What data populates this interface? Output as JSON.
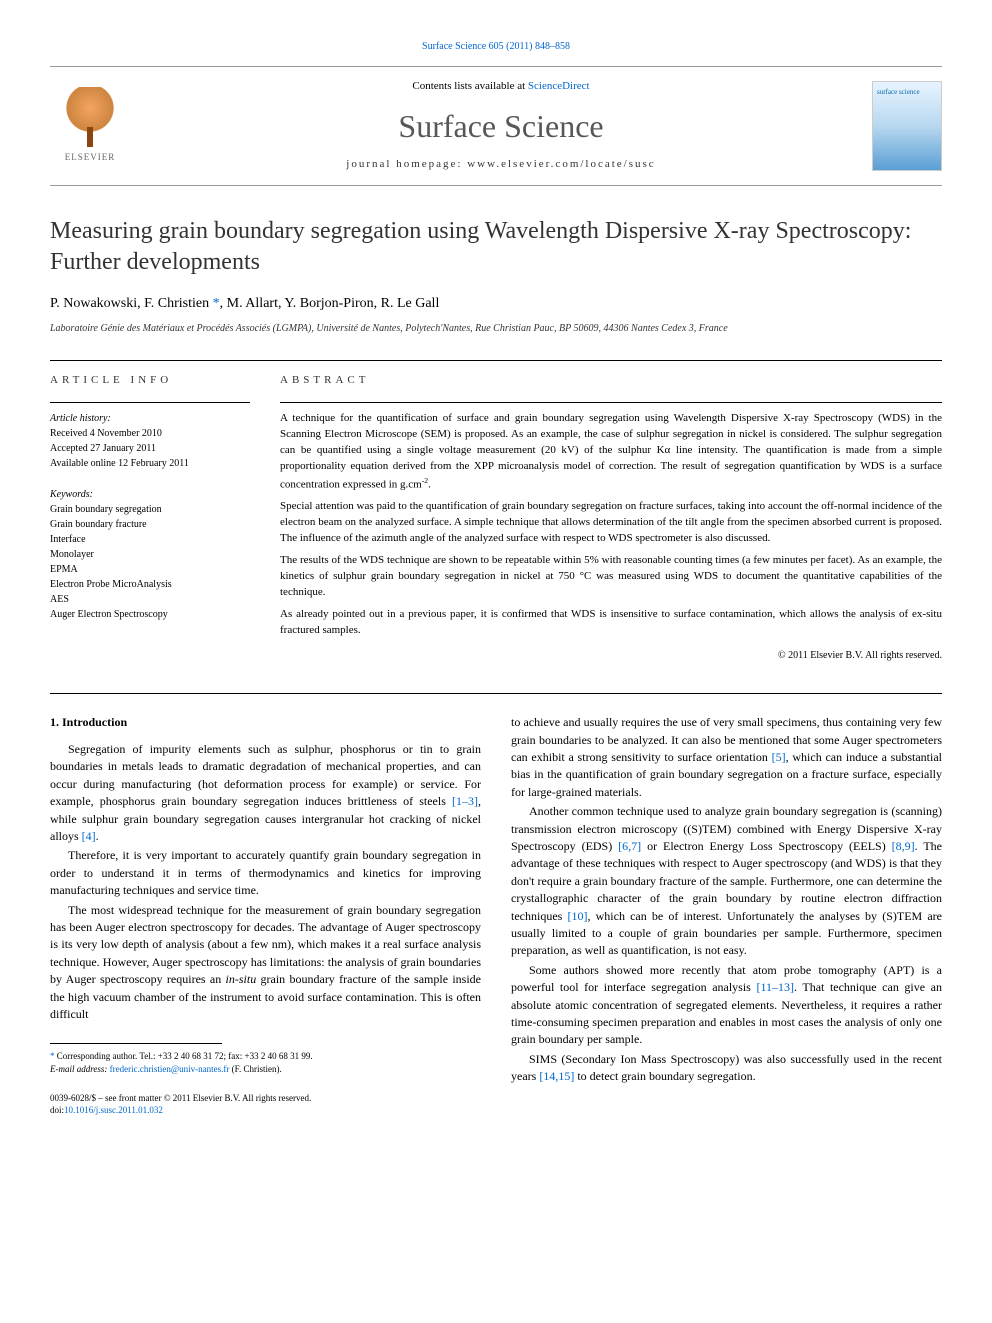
{
  "journal": {
    "citation_line": "Surface Science 605 (2011) 848–858",
    "contents_prefix": "Contents lists available at ",
    "contents_link": "ScienceDirect",
    "name": "Surface Science",
    "homepage_prefix": "journal homepage: ",
    "homepage": "www.elsevier.com/locate/susc",
    "publisher": "ELSEVIER",
    "cover_title": "surface science"
  },
  "article": {
    "title": "Measuring grain boundary segregation using Wavelength Dispersive X-ray Spectroscopy: Further developments",
    "authors_pre": "P. Nowakowski, F. Christien ",
    "authors_post": ", M. Allart, Y. Borjon-Piron, R. Le Gall",
    "corr_marker": "*",
    "affiliation": "Laboratoire Génie des Matériaux et Procédés Associés (LGMPA), Université de Nantes, Polytech'Nantes, Rue Christian Pauc, BP 50609, 44306 Nantes Cedex 3, France"
  },
  "meta": {
    "info_label": "article info",
    "abstract_label": "abstract",
    "history_title": "Article history:",
    "history_l1": "Received 4 November 2010",
    "history_l2": "Accepted 27 January 2011",
    "history_l3": "Available online 12 February 2011",
    "keywords_title": "Keywords:",
    "kw1": "Grain boundary segregation",
    "kw2": "Grain boundary fracture",
    "kw3": "Interface",
    "kw4": "Monolayer",
    "kw5": "EPMA",
    "kw6": "Electron Probe MicroAnalysis",
    "kw7": "AES",
    "kw8": "Auger Electron Spectroscopy"
  },
  "abstract": {
    "p1": "A technique for the quantification of surface and grain boundary segregation using Wavelength Dispersive X-ray Spectroscopy (WDS) in the Scanning Electron Microscope (SEM) is proposed. As an example, the case of sulphur segregation in nickel is considered. The sulphur segregation can be quantified using a single voltage measurement (20 kV) of the sulphur Kα line intensity. The quantification is made from a simple proportionality equation derived from the XPP microanalysis model of correction. The result of segregation quantification by WDS is a surface concentration expressed in g.cm",
    "p1_sup": "-2",
    "p1_end": ".",
    "p2": "Special attention was paid to the quantification of grain boundary segregation on fracture surfaces, taking into account the off-normal incidence of the electron beam on the analyzed surface. A simple technique that allows determination of the tilt angle from the specimen absorbed current is proposed. The influence of the azimuth angle of the analyzed surface with respect to WDS spectrometer is also discussed.",
    "p3": "The results of the WDS technique are shown to be repeatable within 5% with reasonable counting times (a few minutes per facet). As an example, the kinetics of sulphur grain boundary segregation in nickel at 750 °C was measured using WDS to document the quantitative capabilities of the technique.",
    "p4": "As already pointed out in a previous paper, it is confirmed that WDS is insensitive to surface contamination, which allows the analysis of ex-situ fractured samples.",
    "copyright": "© 2011 Elsevier B.V. All rights reserved."
  },
  "body": {
    "heading1": "1. Introduction",
    "l1p1_a": "Segregation of impurity elements such as sulphur, phosphorus or tin to grain boundaries in metals leads to dramatic degradation of mechanical properties, and can occur during manufacturing (hot deformation process for example) or service. For example, phosphorus grain boundary segregation induces brittleness of steels ",
    "ref_1_3": "[1–3]",
    "l1p1_b": ", while sulphur grain boundary segregation causes intergranular hot cracking of nickel alloys ",
    "ref_4": "[4]",
    "l1p1_c": ".",
    "l1p2": "Therefore, it is very important to accurately quantify grain boundary segregation in order to understand it in terms of thermodynamics and kinetics for improving manufacturing techniques and service time.",
    "l1p3_a": "The most widespread technique for the measurement of grain boundary segregation has been Auger electron spectroscopy for decades. The advantage of Auger spectroscopy is its very low depth of analysis (about a few nm), which makes it a real surface analysis technique. However, Auger spectroscopy has limitations: the analysis of grain boundaries by Auger spectroscopy requires an ",
    "l1p3_it": "in-situ",
    "l1p3_b": " grain boundary fracture of the sample inside the high vacuum chamber of the instrument to avoid surface contamination. This is often difficult",
    "r1p1_a": "to achieve and usually requires the use of very small specimens, thus containing very few grain boundaries to be analyzed. It can also be mentioned that some Auger spectrometers can exhibit a strong sensitivity to surface orientation ",
    "ref_5": "[5]",
    "r1p1_b": ", which can induce a substantial bias in the quantification of grain boundary segregation on a fracture surface, especially for large-grained materials.",
    "r1p2_a": "Another common technique used to analyze grain boundary segregation is (scanning) transmission electron microscopy ((S)TEM) combined with Energy Dispersive X-ray Spectroscopy (EDS) ",
    "ref_6_7": "[6,7]",
    "r1p2_b": " or Electron Energy Loss Spectroscopy (EELS) ",
    "ref_8_9": "[8,9]",
    "r1p2_c": ". The advantage of these techniques with respect to Auger spectroscopy (and WDS) is that they don't require a grain boundary fracture of the sample. Furthermore, one can determine the crystallographic character of the grain boundary by routine electron diffraction techniques ",
    "ref_10": "[10]",
    "r1p2_d": ", which can be of interest. Unfortunately the analyses by (S)TEM are usually limited to a couple of grain boundaries per sample. Furthermore, specimen preparation, as well as quantification, is not easy.",
    "r1p3_a": "Some authors showed more recently that atom probe tomography (APT) is a powerful tool for interface segregation analysis ",
    "ref_11_13": "[11–13]",
    "r1p3_b": ". That technique can give an absolute atomic concentration of segregated elements. Nevertheless, it requires a rather time-consuming specimen preparation and enables in most cases the analysis of only one grain boundary per sample.",
    "r1p4_a": "SIMS (Secondary Ion Mass Spectroscopy) was also successfully used in the recent years ",
    "ref_14_15": "[14,15]",
    "r1p4_b": " to detect grain boundary segregation."
  },
  "footnote": {
    "marker": "*",
    "line1": " Corresponding author. Tel.: +33 2 40 68 31 72; fax: +33 2 40 68 31 99.",
    "email_label": "E-mail address: ",
    "email": "frederic.christien@univ-nantes.fr",
    "email_post": " (F. Christien)."
  },
  "footer": {
    "l1": "0039-6028/$ – see front matter © 2011 Elsevier B.V. All rights reserved.",
    "l2_pre": "doi:",
    "doi": "10.1016/j.susc.2011.01.032"
  }
}
